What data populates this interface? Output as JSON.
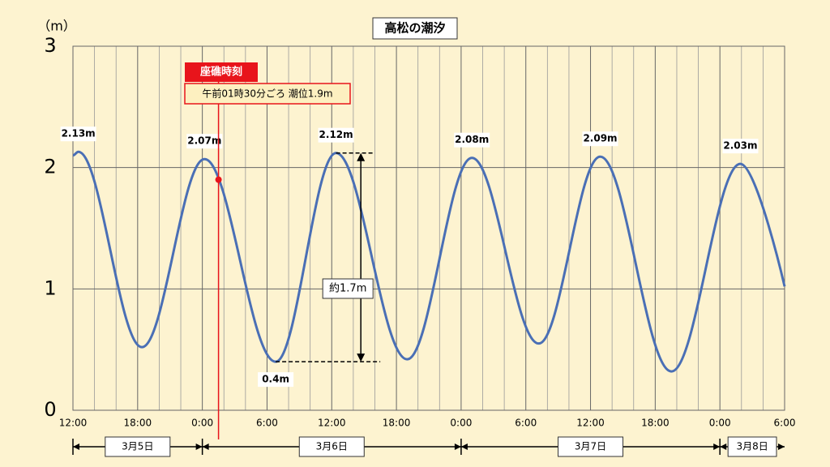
{
  "chart_data": {
    "type": "line",
    "title": "高松の潮汐",
    "y_unit": "（m）",
    "x": [
      0,
      0.5,
      6.4,
      12.2,
      18.8,
      24.4,
      31,
      37,
      43.2,
      48.9,
      55.5,
      61.9,
      66
    ],
    "series": [
      {
        "color": "#4a6fb5",
        "values": [
          2.1,
          2.13,
          0.52,
          2.07,
          0.4,
          2.12,
          0.42,
          2.08,
          0.55,
          2.09,
          0.32,
          2.03,
          1.02
        ],
        "value_labels": [
          null,
          "2.13m",
          null,
          "2.07m",
          "0.4m",
          "2.12m",
          null,
          "2.08m",
          null,
          "2.09m",
          null,
          "2.03m",
          null
        ]
      }
    ],
    "xlim": [
      0,
      66
    ],
    "xticks": [
      {
        "value": 0,
        "label": "12:00"
      },
      {
        "value": 6,
        "label": "18:00"
      },
      {
        "value": 12,
        "label": "0:00"
      },
      {
        "value": 18,
        "label": "6:00"
      },
      {
        "value": 24,
        "label": "12:00"
      },
      {
        "value": 30,
        "label": "18:00"
      },
      {
        "value": 36,
        "label": "0:00"
      },
      {
        "value": 42,
        "label": "6:00"
      },
      {
        "value": 48,
        "label": "12:00"
      },
      {
        "value": 54,
        "label": "18:00"
      },
      {
        "value": 60,
        "label": "0:00"
      },
      {
        "value": 66,
        "label": "6:00"
      }
    ],
    "xgrid": [
      2,
      4,
      8,
      10,
      14,
      16,
      20,
      22,
      26,
      28,
      32,
      34,
      38,
      40,
      44,
      46,
      50,
      52,
      56,
      58,
      62,
      64
    ],
    "ylim": [
      0,
      3
    ],
    "yticks": [
      0,
      1,
      2,
      3
    ],
    "grid": true,
    "dates": [
      {
        "label": "3月5日",
        "start": 0,
        "end": 12
      },
      {
        "label": "3月6日",
        "start": 12,
        "end": 36
      },
      {
        "label": "3月7日",
        "start": 36,
        "end": 60
      },
      {
        "label": "3月8日",
        "start": 60,
        "end": 66
      }
    ],
    "event": {
      "title": "座礁時刻",
      "label": "午前01時30分ごろ 潮位1.9m",
      "x": 13.5,
      "value": 1.9,
      "color": "#e8141b"
    },
    "range_annotation": {
      "label": "約1.7m"
    }
  }
}
